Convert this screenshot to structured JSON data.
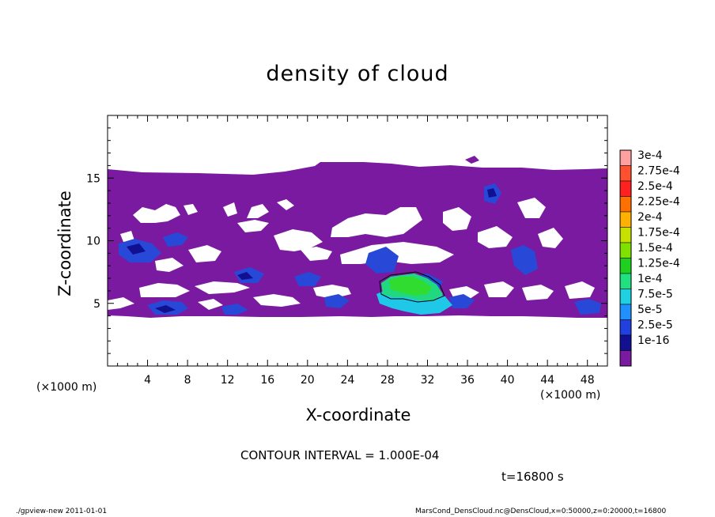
{
  "chart_data": {
    "type": "heatmap",
    "title": "density of cloud",
    "xlabel": "X-coordinate",
    "ylabel": "Z-coordinate",
    "x_unit_left": "(×1000 m)",
    "x_unit_right": "(×1000 m)",
    "xlim": [
      0,
      50
    ],
    "ylim": [
      0,
      20
    ],
    "x_ticks": [
      "4",
      "8",
      "12",
      "16",
      "20",
      "24",
      "28",
      "32",
      "36",
      "40",
      "44",
      "48"
    ],
    "y_ticks": [
      "5",
      "10",
      "15"
    ],
    "colorbar": {
      "labels": [
        "3e-4",
        "2.75e-4",
        "2.5e-4",
        "2.25e-4",
        "2e-4",
        "1.75e-4",
        "1.5e-4",
        "1.25e-4",
        "1e-4",
        "7.5e-5",
        "5e-5",
        "2.5e-5",
        "1e-16"
      ],
      "colors": [
        "#ffa0a0",
        "#ff5030",
        "#ff2020",
        "#ff7000",
        "#ffb000",
        "#c8e000",
        "#80e000",
        "#20d020",
        "#20e080",
        "#20d0e0",
        "#2090ff",
        "#2040e0",
        "#101090",
        "#7a1aa0"
      ]
    },
    "cloud_layer": {
      "z_bottom": 4,
      "z_top": 15.5,
      "dominant_value": "1e-16 to 2.5e-5"
    },
    "max_region": {
      "x_range": [
        27,
        34
      ],
      "z_range": [
        4.5,
        7
      ],
      "value": "1e-4 to 1.5e-4"
    }
  },
  "contour_interval": "CONTOUR INTERVAL = 1.000E-04",
  "time": "t=16800 s",
  "footer_left": "./gpview-new  2011-01-01",
  "footer_right": "MarsCond_DensCloud.nc@DensCloud,x=0:50000,z=0:20000,t=16800"
}
